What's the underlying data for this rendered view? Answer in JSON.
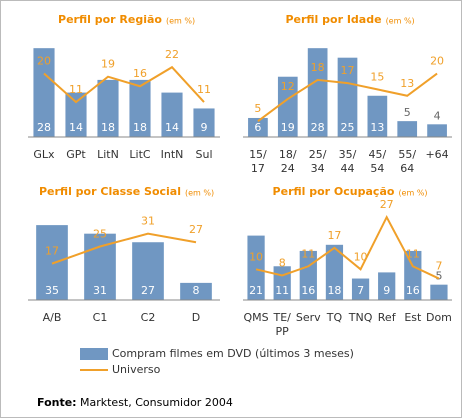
{
  "chart_data": [
    {
      "type": "bar_line",
      "title": "Perfil por Região",
      "title_note": "(em %)",
      "categories": [
        "GLx",
        "GPt",
        "LitN",
        "LitC",
        "IntN",
        "Sul"
      ],
      "series": [
        {
          "name": "Compram filmes em DVD (últimos 3 meses)",
          "color": "#7097c2",
          "values": [
            28,
            14,
            18,
            18,
            14,
            9
          ]
        },
        {
          "name": "Universo",
          "color": "#f0a02a",
          "values": [
            20,
            11,
            19,
            16,
            22,
            11
          ]
        }
      ],
      "ylim": [
        0,
        29
      ]
    },
    {
      "type": "bar_line",
      "title": "Perfil por Idade",
      "title_note": "(em %)",
      "categories": [
        [
          "15/",
          "17"
        ],
        [
          "18/",
          "24"
        ],
        [
          "25/",
          "34"
        ],
        [
          "35/",
          "44"
        ],
        [
          "45/",
          "54"
        ],
        [
          "55/",
          "64"
        ],
        "+64"
      ],
      "series": [
        {
          "color": "#7097c2",
          "values": [
            6,
            19,
            28,
            25,
            13,
            5,
            4
          ]
        },
        {
          "color": "#f0a02a",
          "values": [
            5,
            12,
            18,
            17,
            15,
            13,
            20
          ]
        }
      ],
      "ylim": [
        0,
        29
      ]
    },
    {
      "type": "bar_line",
      "title": "Perfil por Classe Social",
      "title_note": "(em %)",
      "categories": [
        "A/B",
        "C1",
        "C2",
        "D"
      ],
      "series": [
        {
          "color": "#7097c2",
          "values": [
            35,
            31,
            27,
            8
          ]
        },
        {
          "color": "#f0a02a",
          "values": [
            17,
            25,
            31,
            27
          ]
        }
      ],
      "ylim": [
        0,
        43
      ]
    },
    {
      "type": "bar_line",
      "title": "Perfil por Ocupação",
      "title_note": "(em %)",
      "categories": [
        "QMS",
        [
          "TE/",
          "PP"
        ],
        "Serv",
        "TQ",
        "TNQ",
        "Ref",
        "Est",
        "Dom"
      ],
      "series": [
        {
          "color": "#7097c2",
          "values": [
            21,
            11,
            16,
            18,
            7,
            9,
            16,
            5
          ]
        },
        {
          "color": "#f0a02a",
          "values": [
            10,
            8,
            11,
            17,
            10,
            27,
            11,
            7
          ]
        }
      ],
      "ylim": [
        0,
        30
      ]
    }
  ],
  "source": {
    "label": "Fonte:",
    "text": "Marktest, Consumidor 2004"
  }
}
